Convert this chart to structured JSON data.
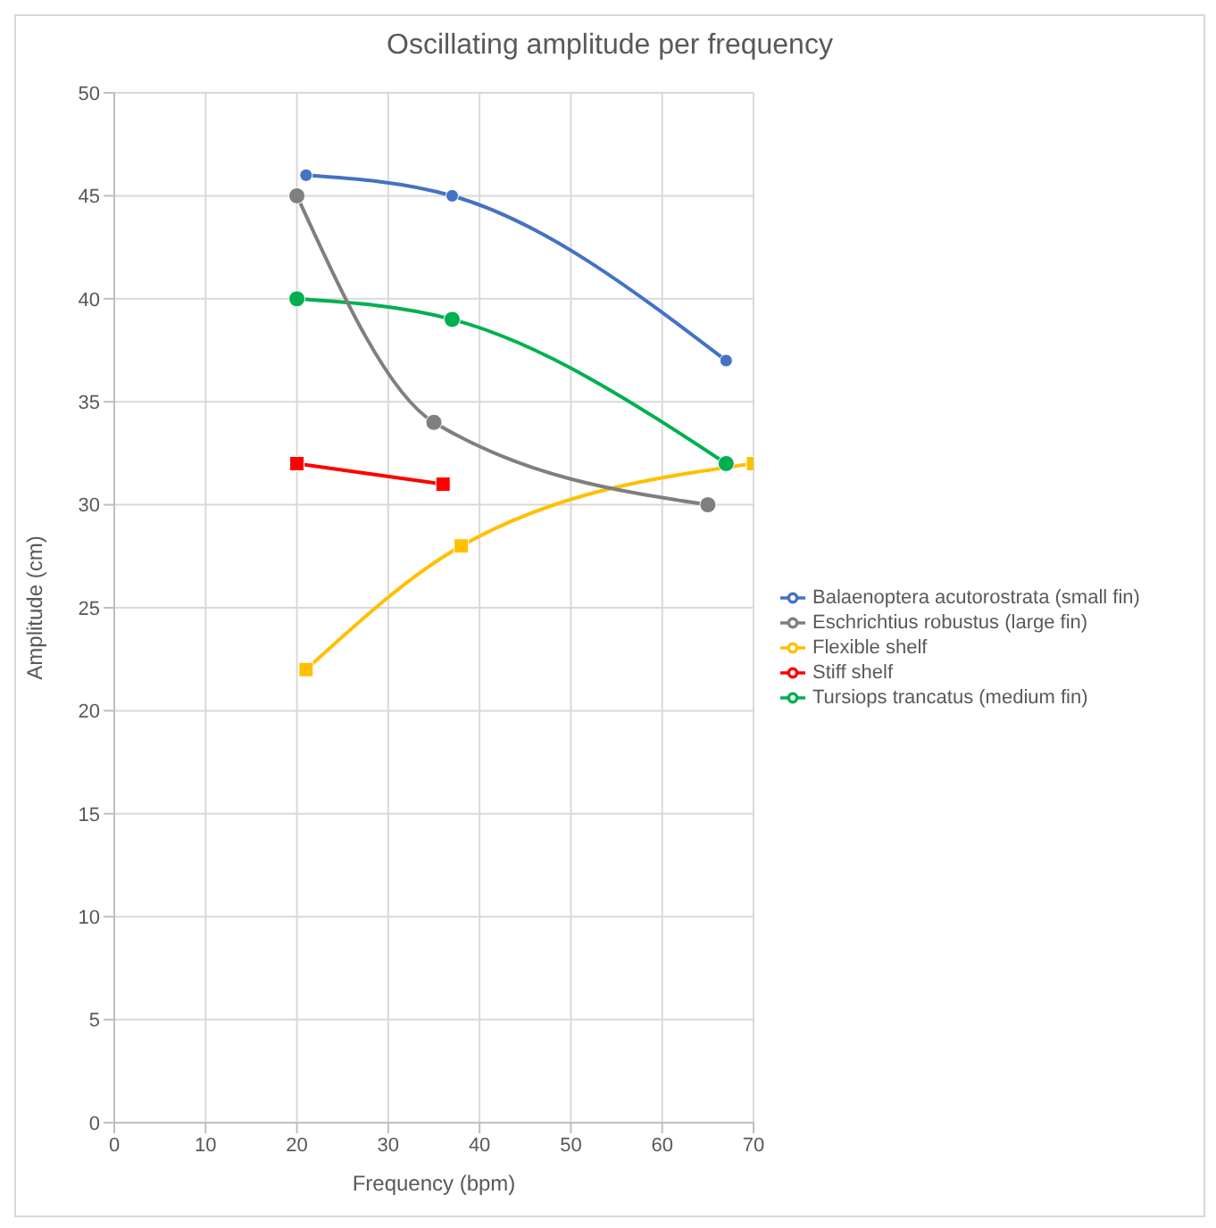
{
  "chart_data": {
    "type": "line",
    "title": "Oscillating amplitude per frequency",
    "xlabel": "Frequency (bpm)",
    "ylabel": "Amplitude (cm)",
    "xlim": [
      0,
      70
    ],
    "xticks": [
      0,
      10,
      20,
      30,
      40,
      50,
      60,
      70
    ],
    "ylim": [
      0,
      50
    ],
    "yticks": [
      0,
      5,
      10,
      15,
      20,
      25,
      30,
      35,
      40,
      45,
      50
    ],
    "grid": true,
    "legend": "right",
    "series": [
      {
        "name": "Flexible shelf",
        "color": "#ffc000",
        "marker": "square",
        "x": [
          21,
          38,
          70
        ],
        "values": [
          22,
          28,
          32
        ]
      },
      {
        "name": "Stiff shelf",
        "color": "#ff0000",
        "marker": "square",
        "x": [
          20,
          36
        ],
        "values": [
          32,
          31
        ]
      },
      {
        "name": "Balaenoptera acutorostrata (small fin)",
        "color": "#4472c4",
        "marker": "circle",
        "x": [
          21,
          37,
          67
        ],
        "values": [
          46,
          45,
          37
        ]
      },
      {
        "name": "Tursiops trancatus (medium fin)",
        "color": "#00b050",
        "marker": "circle",
        "x": [
          20,
          37,
          67
        ],
        "values": [
          40,
          39,
          32
        ]
      },
      {
        "name": "Eschrichtius robustus (large fin)",
        "color": "#7f7f7f",
        "marker": "circle",
        "x": [
          20,
          35,
          65
        ],
        "values": [
          45,
          34,
          30
        ]
      }
    ]
  }
}
